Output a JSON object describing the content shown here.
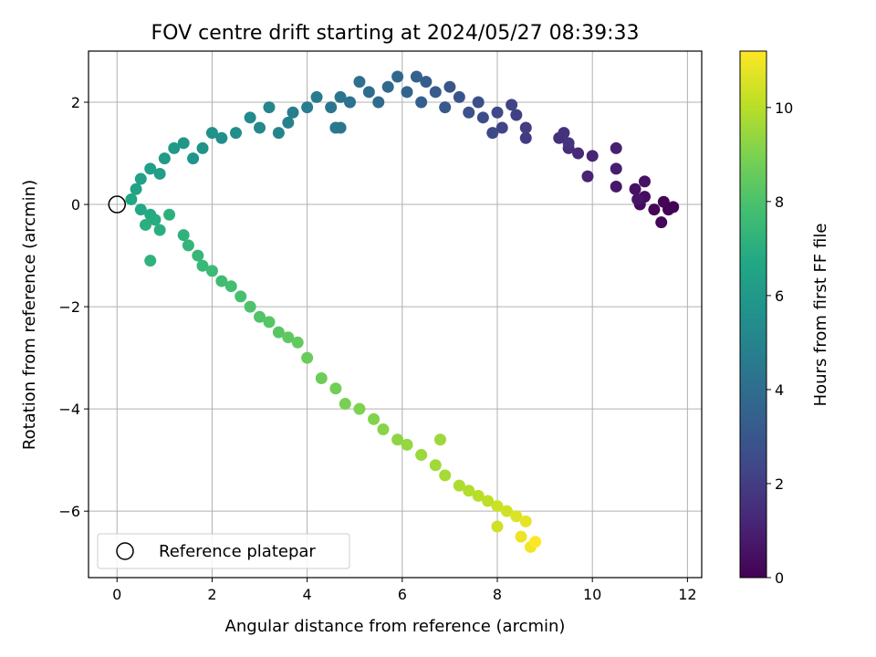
{
  "chart_data": {
    "type": "scatter",
    "title": "FOV centre drift starting at 2024/05/27 08:39:33",
    "xlabel": "Angular distance from reference (arcmin)",
    "ylabel": "Rotation from reference (arcmin)",
    "xlim": [
      -0.6,
      12.3
    ],
    "ylim": [
      -7.3,
      3.0
    ],
    "xticks": [
      0,
      2,
      4,
      6,
      8,
      10,
      12
    ],
    "yticks": [
      -6,
      -4,
      -2,
      0,
      2
    ],
    "grid": true,
    "colorbar": {
      "label": "Hours from first FF file",
      "range": [
        0,
        11.2
      ],
      "ticks": [
        0,
        2,
        4,
        6,
        8,
        10
      ],
      "colormap": "viridis"
    },
    "reference_point": {
      "label": "Reference platepar",
      "x": 0,
      "y": 0
    },
    "legend": {
      "position": "lower-left",
      "entries": [
        "Reference platepar"
      ]
    },
    "series": [
      {
        "points": [
          [
            11.6,
            -0.1,
            0.0
          ],
          [
            11.7,
            -0.05,
            0.05
          ],
          [
            11.5,
            0.05,
            0.1
          ],
          [
            11.3,
            -0.1,
            0.15
          ],
          [
            11.45,
            -0.35,
            0.2
          ],
          [
            11.0,
            0.0,
            0.3
          ],
          [
            11.1,
            0.15,
            0.4
          ],
          [
            10.9,
            0.3,
            0.5
          ],
          [
            11.1,
            0.45,
            0.55
          ],
          [
            10.95,
            0.1,
            0.6
          ],
          [
            10.5,
            0.35,
            0.75
          ],
          [
            10.5,
            0.7,
            0.9
          ],
          [
            10.5,
            1.1,
            1.0
          ],
          [
            9.9,
            0.55,
            1.1
          ],
          [
            10.0,
            0.95,
            1.2
          ],
          [
            9.7,
            1.0,
            1.3
          ],
          [
            9.5,
            1.1,
            1.4
          ],
          [
            9.3,
            1.3,
            1.5
          ],
          [
            9.4,
            1.4,
            1.6
          ],
          [
            9.5,
            1.2,
            1.7
          ],
          [
            8.6,
            1.3,
            1.9
          ],
          [
            8.6,
            1.5,
            2.0
          ],
          [
            8.4,
            1.75,
            2.1
          ],
          [
            8.3,
            1.95,
            2.2
          ],
          [
            8.1,
            1.5,
            2.3
          ],
          [
            8.0,
            1.8,
            2.4
          ],
          [
            7.9,
            1.4,
            2.5
          ],
          [
            7.7,
            1.7,
            2.6
          ],
          [
            7.6,
            2.0,
            2.7
          ],
          [
            7.4,
            1.8,
            2.8
          ],
          [
            7.2,
            2.1,
            2.9
          ],
          [
            7.0,
            2.3,
            3.0
          ],
          [
            6.9,
            1.9,
            3.1
          ],
          [
            6.7,
            2.2,
            3.2
          ],
          [
            6.5,
            2.4,
            3.3
          ],
          [
            6.4,
            2.0,
            3.4
          ],
          [
            6.3,
            2.5,
            3.5
          ],
          [
            6.1,
            2.2,
            3.6
          ],
          [
            5.9,
            2.5,
            3.7
          ],
          [
            5.7,
            2.3,
            3.8
          ],
          [
            5.5,
            2.0,
            3.9
          ],
          [
            5.3,
            2.2,
            4.0
          ],
          [
            5.1,
            2.4,
            4.1
          ],
          [
            4.9,
            2.0,
            4.2
          ],
          [
            4.7,
            2.1,
            4.3
          ],
          [
            4.5,
            1.9,
            4.4
          ],
          [
            4.6,
            1.5,
            4.5
          ],
          [
            4.2,
            2.1,
            4.6
          ],
          [
            4.0,
            1.9,
            4.7
          ],
          [
            3.7,
            1.8,
            4.8
          ],
          [
            3.6,
            1.6,
            4.9
          ],
          [
            3.4,
            1.4,
            5.0
          ],
          [
            3.2,
            1.9,
            5.1
          ],
          [
            3.0,
            1.5,
            5.2
          ],
          [
            2.8,
            1.7,
            5.3
          ],
          [
            2.5,
            1.4,
            5.4
          ],
          [
            2.2,
            1.3,
            5.5
          ],
          [
            2.0,
            1.4,
            5.6
          ],
          [
            1.8,
            1.1,
            5.7
          ],
          [
            1.6,
            0.9,
            5.8
          ],
          [
            1.4,
            1.2,
            5.9
          ],
          [
            1.2,
            1.1,
            6.0
          ],
          [
            1.0,
            0.9,
            6.1
          ],
          [
            0.9,
            0.6,
            6.2
          ],
          [
            0.7,
            0.7,
            6.3
          ],
          [
            0.5,
            0.5,
            6.4
          ],
          [
            0.4,
            0.3,
            6.5
          ],
          [
            0.3,
            0.1,
            6.6
          ],
          [
            0.5,
            -0.1,
            6.7
          ],
          [
            0.7,
            -0.2,
            6.8
          ],
          [
            0.8,
            -0.3,
            6.9
          ],
          [
            0.9,
            -0.5,
            7.0
          ],
          [
            0.6,
            -0.4,
            7.05
          ],
          [
            1.1,
            -0.2,
            7.1
          ],
          [
            1.4,
            -0.6,
            7.2
          ],
          [
            1.5,
            -0.8,
            7.3
          ],
          [
            1.7,
            -1.0,
            7.4
          ],
          [
            1.8,
            -1.2,
            7.5
          ],
          [
            2.0,
            -1.3,
            7.6
          ],
          [
            2.2,
            -1.5,
            7.7
          ],
          [
            2.4,
            -1.6,
            7.8
          ],
          [
            2.6,
            -1.8,
            7.9
          ],
          [
            2.8,
            -2.0,
            8.0
          ],
          [
            3.0,
            -2.2,
            8.1
          ],
          [
            3.2,
            -2.3,
            8.2
          ],
          [
            3.4,
            -2.5,
            8.3
          ],
          [
            3.6,
            -2.6,
            8.4
          ],
          [
            3.8,
            -2.7,
            8.5
          ],
          [
            4.0,
            -3.0,
            8.6
          ],
          [
            4.3,
            -3.4,
            8.7
          ],
          [
            4.6,
            -3.6,
            8.8
          ],
          [
            4.8,
            -3.9,
            8.9
          ],
          [
            5.1,
            -4.0,
            9.0
          ],
          [
            5.4,
            -4.2,
            9.1
          ],
          [
            5.6,
            -4.4,
            9.2
          ],
          [
            5.9,
            -4.6,
            9.3
          ],
          [
            6.1,
            -4.7,
            9.4
          ],
          [
            6.4,
            -4.9,
            9.5
          ],
          [
            6.7,
            -5.1,
            9.6
          ],
          [
            6.9,
            -5.3,
            9.7
          ],
          [
            7.2,
            -5.5,
            9.8
          ],
          [
            7.4,
            -5.6,
            9.9
          ],
          [
            7.6,
            -5.7,
            10.0
          ],
          [
            7.8,
            -5.8,
            10.1
          ],
          [
            8.0,
            -5.9,
            10.3
          ],
          [
            8.2,
            -6.0,
            10.4
          ],
          [
            8.4,
            -6.1,
            10.6
          ],
          [
            8.6,
            -6.2,
            10.8
          ],
          [
            8.5,
            -6.5,
            10.9
          ],
          [
            8.7,
            -6.7,
            11.0
          ],
          [
            8.8,
            -6.6,
            11.2
          ],
          [
            0.7,
            -1.1,
            7.2
          ],
          [
            4.7,
            1.5,
            4.45
          ],
          [
            6.8,
            -4.6,
            9.55
          ],
          [
            8.0,
            -6.3,
            10.4
          ]
        ]
      }
    ]
  }
}
